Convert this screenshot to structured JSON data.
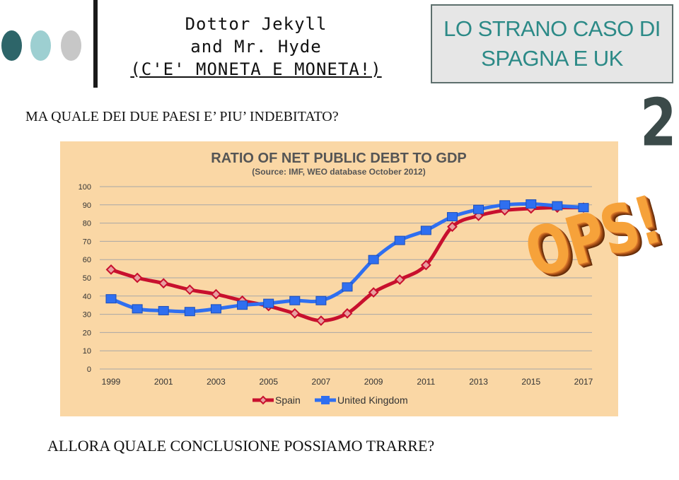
{
  "header": {
    "title_line1": "Dottor Jekyll",
    "title_line2": "and Mr. Hyde",
    "title_line3": "(C'E' MONETA E MONETA!)",
    "topic_line1": "LO STRANO CASO DI",
    "topic_line2": "SPAGNA  E UK",
    "slide_number": "2"
  },
  "decor": {
    "dot_colors": [
      "#2d6569",
      "#9dcfd1",
      "#c7c7c7"
    ]
  },
  "question": "MA QUALE DEI DUE PAESI E’ PIU’ INDEBITATO?",
  "conclusion": "ALLORA QUALE CONCLUSIONE POSSIAMO TRARRE?",
  "callout": "OPS!",
  "chart_data": {
    "type": "line",
    "title": "RATIO OF NET PUBLIC DEBT TO GDP",
    "subtitle": "(Source: IMF, WEO database October 2012)",
    "x": [
      1999,
      2000,
      2001,
      2002,
      2003,
      2004,
      2005,
      2006,
      2007,
      2008,
      2009,
      2010,
      2011,
      2012,
      2013,
      2014,
      2015,
      2016,
      2017
    ],
    "x_tick_labels": [
      "1999",
      "2001",
      "2003",
      "2005",
      "2007",
      "2009",
      "2011",
      "2013",
      "2015",
      "2017"
    ],
    "ylim": [
      0,
      100
    ],
    "y_ticks": [
      0,
      10,
      20,
      30,
      40,
      50,
      60,
      70,
      80,
      90,
      100
    ],
    "grid": true,
    "legend_position": "bottom",
    "background": "#fad7a5",
    "series": [
      {
        "name": "Spain",
        "color": "#c8102e",
        "marker": "diamond",
        "values": [
          54.5,
          50,
          47,
          43.5,
          41,
          37.5,
          34.5,
          30.5,
          26.5,
          30.5,
          42,
          49,
          57,
          78,
          84,
          87,
          88,
          88.5,
          88.5
        ]
      },
      {
        "name": "United Kingdom",
        "color": "#2f6ff0",
        "marker": "square",
        "values": [
          38.5,
          33,
          32,
          31.5,
          33,
          35,
          36,
          37.5,
          37.5,
          45,
          60,
          70.5,
          76,
          83.5,
          87.5,
          90,
          90.5,
          89.5,
          88.5
        ]
      }
    ]
  }
}
